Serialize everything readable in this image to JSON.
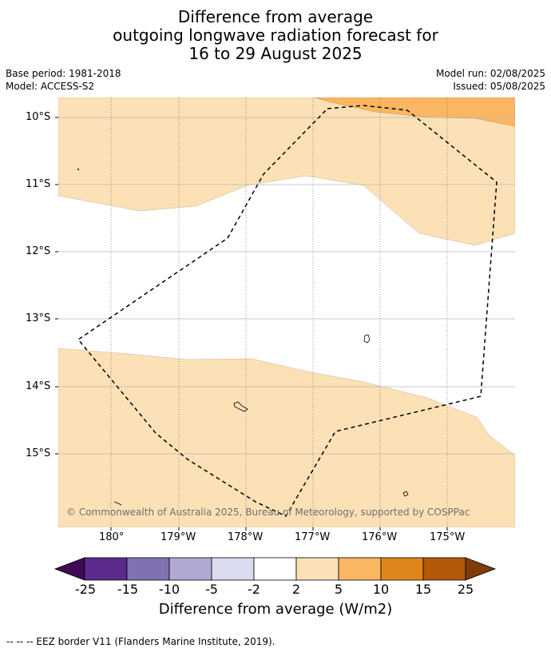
{
  "title": {
    "line1": "Difference from average",
    "line2": "outgoing longwave radiation forecast for",
    "line3": "16 to 29 August 2025"
  },
  "meta": {
    "base_period": "Base period: 1981-2018",
    "model": "Model: ACCESS-S2",
    "model_run": "Model run: 02/08/2025",
    "issued": "Issued: 05/08/2025"
  },
  "map": {
    "lat_labels": [
      "10°S",
      "11°S",
      "12°S",
      "13°S",
      "14°S",
      "15°S"
    ],
    "lon_labels": [
      "180°",
      "179°W",
      "178°W",
      "177°W",
      "176°W",
      "175°W"
    ],
    "copyright": "© Commonwealth of Australia 2025, Bureau of Meteorology, supported by COSPPac",
    "colors": {
      "light_orange": "#fce0b6",
      "orange": "#fbb662",
      "eez_border": "#000000"
    }
  },
  "colorbar": {
    "labels": [
      "-25",
      "-15",
      "-10",
      "-5",
      "-2",
      "2",
      "5",
      "10",
      "15",
      "25"
    ],
    "colors": [
      "#3d0b57",
      "#5c2a8d",
      "#8072b0",
      "#b1a9d3",
      "#dadbee",
      "#ffffff",
      "#fce0b6",
      "#fbb662",
      "#e08519",
      "#b35807",
      "#7f3b08"
    ],
    "title": "Difference from average (W/m2)"
  },
  "legend": {
    "eez_text": "--  --  -- EEZ border V11 (Flanders Marine Institute, 2019)."
  }
}
